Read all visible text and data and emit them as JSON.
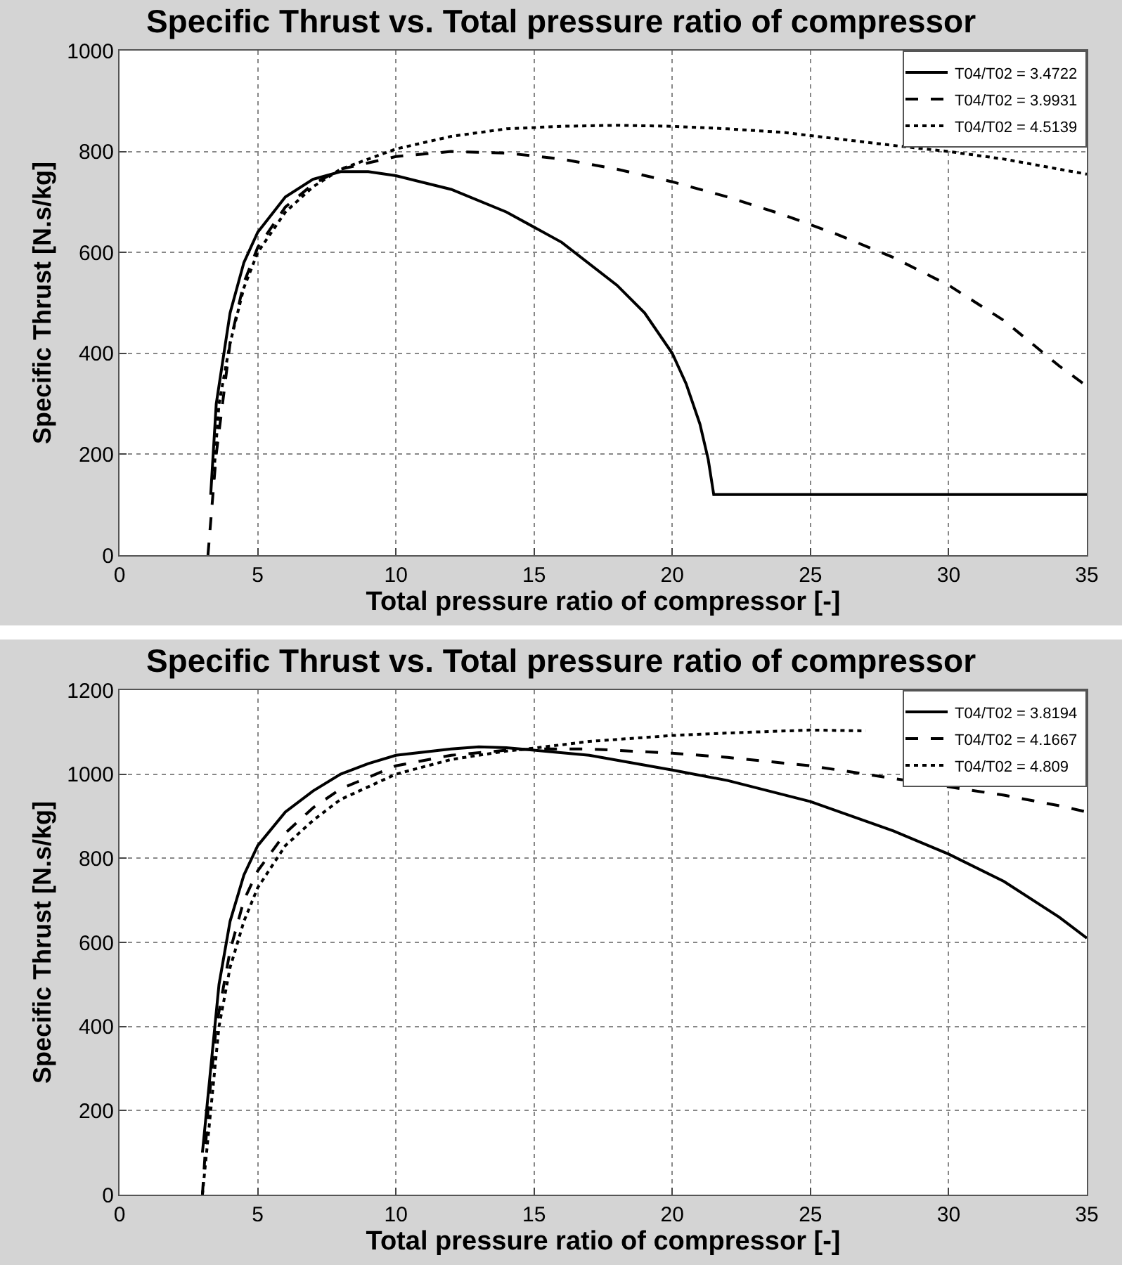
{
  "chart_data": [
    {
      "type": "line",
      "title": "Specific Thrust vs. Total pressure ratio of compressor",
      "xlabel": "Total pressure ratio of compressor [-]",
      "ylabel": "Specific Thrust [N.s/kg]",
      "xlim": [
        0,
        35
      ],
      "ylim": [
        0,
        1000
      ],
      "xticks": [
        0,
        5,
        10,
        15,
        20,
        25,
        30,
        35
      ],
      "yticks": [
        0,
        200,
        400,
        600,
        800,
        1000
      ],
      "grid": true,
      "legend": "top right",
      "marker": "none",
      "series": [
        {
          "name": "T04/T02 = 3.4722",
          "color": "#000000",
          "line_style": "solid",
          "x": [
            3.3,
            3.5,
            4,
            4.5,
            5,
            6,
            7,
            8,
            9,
            10,
            12,
            14,
            16,
            18,
            19,
            20,
            20.5,
            21,
            21.3,
            21.5,
            35
          ],
          "values": [
            120,
            300,
            480,
            580,
            640,
            710,
            745,
            760,
            760,
            752,
            725,
            680,
            620,
            535,
            480,
            400,
            340,
            260,
            190,
            120,
            120
          ]
        },
        {
          "name": "T04/T02 = 3.9931",
          "color": "#000000",
          "line_style": "dashed",
          "x": [
            3.2,
            3.5,
            4,
            4.5,
            5,
            6,
            7,
            8,
            10,
            12,
            14,
            16,
            18,
            20,
            22,
            24,
            26,
            28,
            30,
            32,
            33,
            34,
            35
          ],
          "values": [
            0,
            200,
            420,
            540,
            610,
            690,
            735,
            765,
            790,
            800,
            797,
            785,
            765,
            740,
            710,
            675,
            635,
            590,
            535,
            465,
            420,
            375,
            335
          ]
        },
        {
          "name": "T04/T02 = 4.5139",
          "color": "#000000",
          "line_style": "dotted",
          "x": [
            3.4,
            3.6,
            4,
            4.5,
            5,
            6,
            7,
            8,
            10,
            12,
            14,
            16,
            18,
            20,
            22,
            24,
            26,
            28,
            30,
            32,
            34,
            35
          ],
          "values": [
            150,
            300,
            420,
            530,
            600,
            680,
            730,
            765,
            805,
            830,
            845,
            850,
            852,
            850,
            845,
            838,
            825,
            812,
            800,
            785,
            765,
            755
          ]
        }
      ]
    },
    {
      "type": "line",
      "title": "Specific Thrust vs. Total pressure ratio of compressor",
      "xlabel": "Total pressure ratio of compressor [-]",
      "ylabel": "Specific Thrust [N.s/kg]",
      "xlim": [
        0,
        35
      ],
      "ylim": [
        0,
        1200
      ],
      "xticks": [
        0,
        5,
        10,
        15,
        20,
        25,
        30,
        35
      ],
      "yticks": [
        0,
        200,
        400,
        600,
        800,
        1000,
        1200
      ],
      "grid": true,
      "legend": "top right",
      "marker": "none",
      "series": [
        {
          "name": "T04/T02 = 3.8194",
          "color": "#000000",
          "line_style": "solid",
          "x": [
            3,
            3.3,
            3.6,
            4,
            4.5,
            5,
            6,
            7,
            8,
            9,
            10,
            12,
            13,
            14,
            15,
            17,
            20,
            22,
            25,
            28,
            30,
            32,
            34,
            35
          ],
          "values": [
            100,
            300,
            500,
            650,
            760,
            830,
            910,
            960,
            1000,
            1025,
            1045,
            1060,
            1065,
            1063,
            1057,
            1045,
            1010,
            985,
            935,
            865,
            810,
            745,
            660,
            610
          ]
        },
        {
          "name": "T04/T02 = 4.1667",
          "color": "#000000",
          "line_style": "dashed",
          "x": [
            3,
            3.2,
            3.5,
            4,
            4.5,
            5,
            6,
            7,
            8,
            10,
            12,
            14,
            15,
            17,
            20,
            22,
            25,
            28,
            30,
            32,
            34,
            35
          ],
          "values": [
            0,
            200,
            400,
            580,
            700,
            770,
            860,
            920,
            965,
            1020,
            1045,
            1057,
            1060,
            1060,
            1050,
            1040,
            1020,
            990,
            970,
            950,
            925,
            910
          ]
        },
        {
          "name": "T04/T02 = 4.809",
          "color": "#000000",
          "line_style": "dotted",
          "x": [
            3,
            3.3,
            3.6,
            4,
            4.5,
            5,
            6,
            7,
            8,
            10,
            12,
            14,
            15,
            17,
            20,
            22,
            25,
            27
          ],
          "values": [
            0,
            200,
            400,
            540,
            650,
            730,
            830,
            890,
            940,
            1000,
            1035,
            1055,
            1062,
            1078,
            1092,
            1098,
            1105,
            1103
          ]
        }
      ]
    }
  ]
}
